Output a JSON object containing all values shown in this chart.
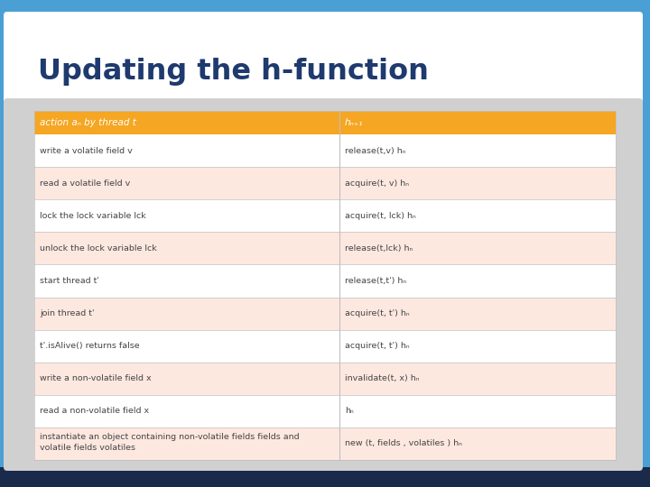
{
  "title": "Updating the h-function",
  "title_color": "#1e3a6e",
  "bg_blue": "#4a9fd4",
  "bg_dark_navy": "#1a2a4a",
  "title_bg": "#ffffff",
  "content_bg": "#d8d8d8",
  "header_bg": "#f5a623",
  "header_text_color": "#ffffff",
  "header_col1": "action aₙ by thread t",
  "header_col2": "hₙ₊₁",
  "row_color_light": "#fde8e0",
  "row_color_white": "#ffffff",
  "row_text_color": "#444444",
  "rows": [
    [
      "write a volatile field v",
      "release(t,v) hₙ"
    ],
    [
      "read a volatile field v",
      "acquire(t, v) hₙ"
    ],
    [
      "lock the lock variable lck",
      "acquire(t, lck) hₙ"
    ],
    [
      "unlock the lock variable lck",
      "release(t,lck) hₙ"
    ],
    [
      "start thread t'",
      "release(t,t') hₙ"
    ],
    [
      "join thread t'",
      "acquire(t, t') hₙ"
    ],
    [
      "t'.isAlive() returns false",
      "acquire(t, t') hₙ"
    ],
    [
      "write a non-volatile field x",
      "invalidate(t, x) hₙ"
    ],
    [
      "read a non-volatile field x",
      "hₙ"
    ],
    [
      "instantiate an object containing non-volatile fields fields and\nvolatile fields volatiles",
      "new (t, fields , volatiles ) hₙ"
    ]
  ],
  "col_split": 0.525
}
